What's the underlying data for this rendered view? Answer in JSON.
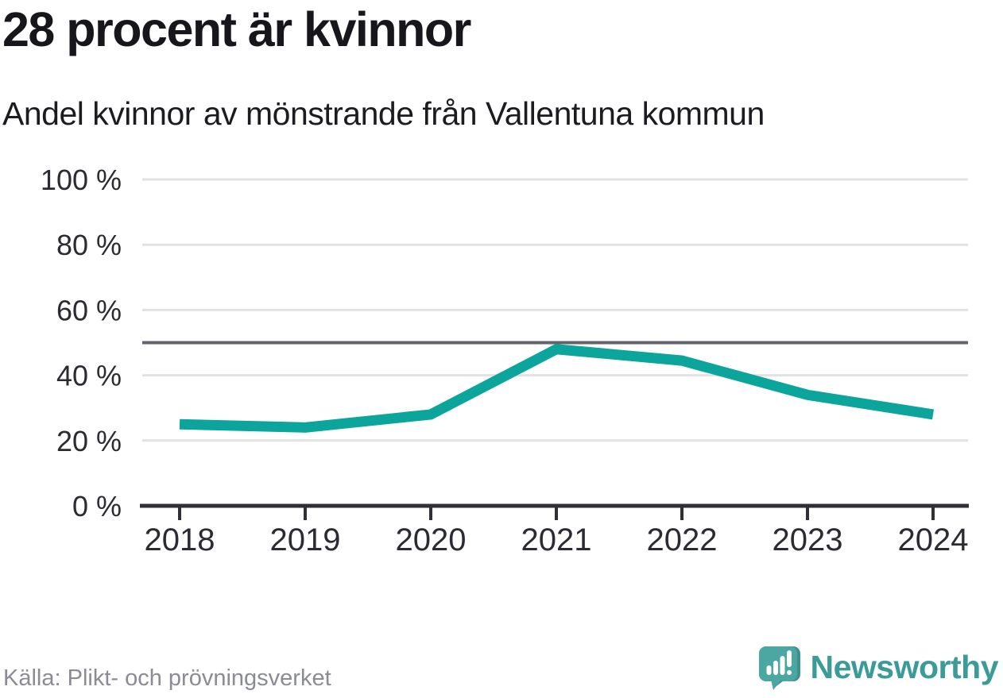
{
  "header": {
    "title": "28 procent är kvinnor",
    "subtitle": "Andel kvinnor av mönstrande från Vallentuna kommun"
  },
  "chart_data": {
    "type": "line",
    "title": "28 procent är kvinnor",
    "subtitle": "Andel kvinnor av mönstrande från Vallentuna kommun",
    "categories": [
      "2018",
      "2019",
      "2020",
      "2021",
      "2022",
      "2023",
      "2024"
    ],
    "values": [
      25,
      24,
      28,
      48,
      44.5,
      34,
      28
    ],
    "unit": "%",
    "ylim": [
      0,
      100
    ],
    "yticks": [
      0,
      20,
      40,
      60,
      80,
      100
    ],
    "ytick_suffix": " %",
    "reference_line": 50,
    "grid": true,
    "legend": "none",
    "line_color": "#0ba59b",
    "gridline_color": "#e2e2e2",
    "reference_line_color": "#64646c",
    "axis_color": "#303036"
  },
  "footer": {
    "source": "Källa: Plikt- och prövningsverket",
    "brand": "Newsworthy"
  },
  "colors": {
    "title": "#17171b",
    "source_text": "#8b8b95",
    "brand_teal": "#4ca6a2",
    "brand_teal_dark": "#3f918e",
    "brand_text": "#3a9b98"
  }
}
